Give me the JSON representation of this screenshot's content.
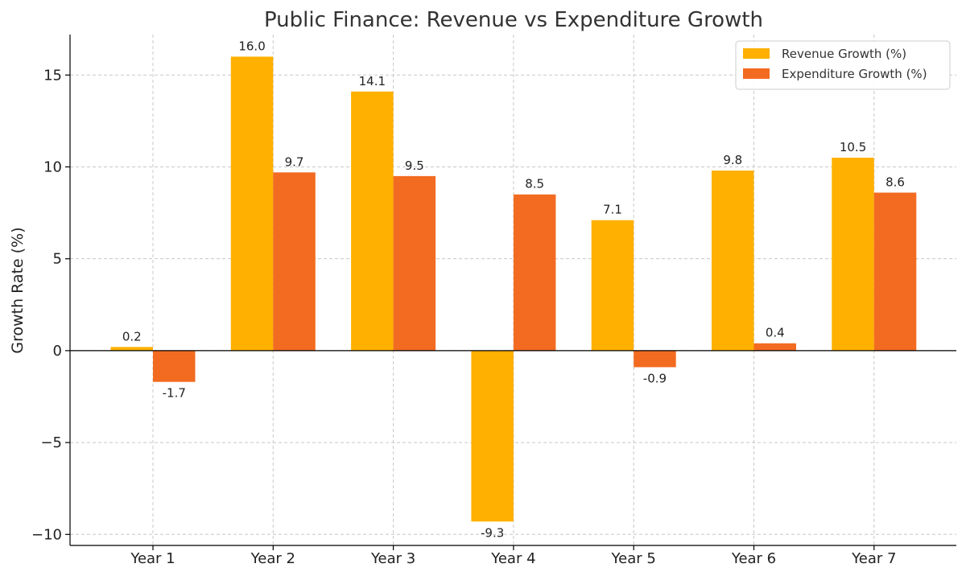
{
  "chart_data": {
    "type": "bar",
    "title": "Public Finance: Revenue vs Expenditure Growth",
    "xlabel": "",
    "ylabel": "Growth Rate (%)",
    "categories": [
      "Year 1",
      "Year 2",
      "Year 3",
      "Year 4",
      "Year 5",
      "Year 6",
      "Year 7"
    ],
    "series": [
      {
        "name": "Revenue Growth (%)",
        "color": "#FFB000",
        "values": [
          0.2,
          16.0,
          14.1,
          -9.3,
          7.1,
          9.8,
          10.5
        ]
      },
      {
        "name": "Expenditure Growth (%)",
        "color": "#F26B21",
        "values": [
          -1.7,
          9.7,
          9.5,
          8.5,
          -0.9,
          0.4,
          8.6
        ]
      }
    ],
    "ylim": [
      -10.6,
      17.2
    ],
    "yticks": [
      -10,
      -5,
      0,
      5,
      10,
      15
    ],
    "ytick_labels": [
      "−10",
      "−5",
      "0",
      "5",
      "10",
      "15"
    ],
    "grid": true,
    "legend_position": "top-right"
  }
}
